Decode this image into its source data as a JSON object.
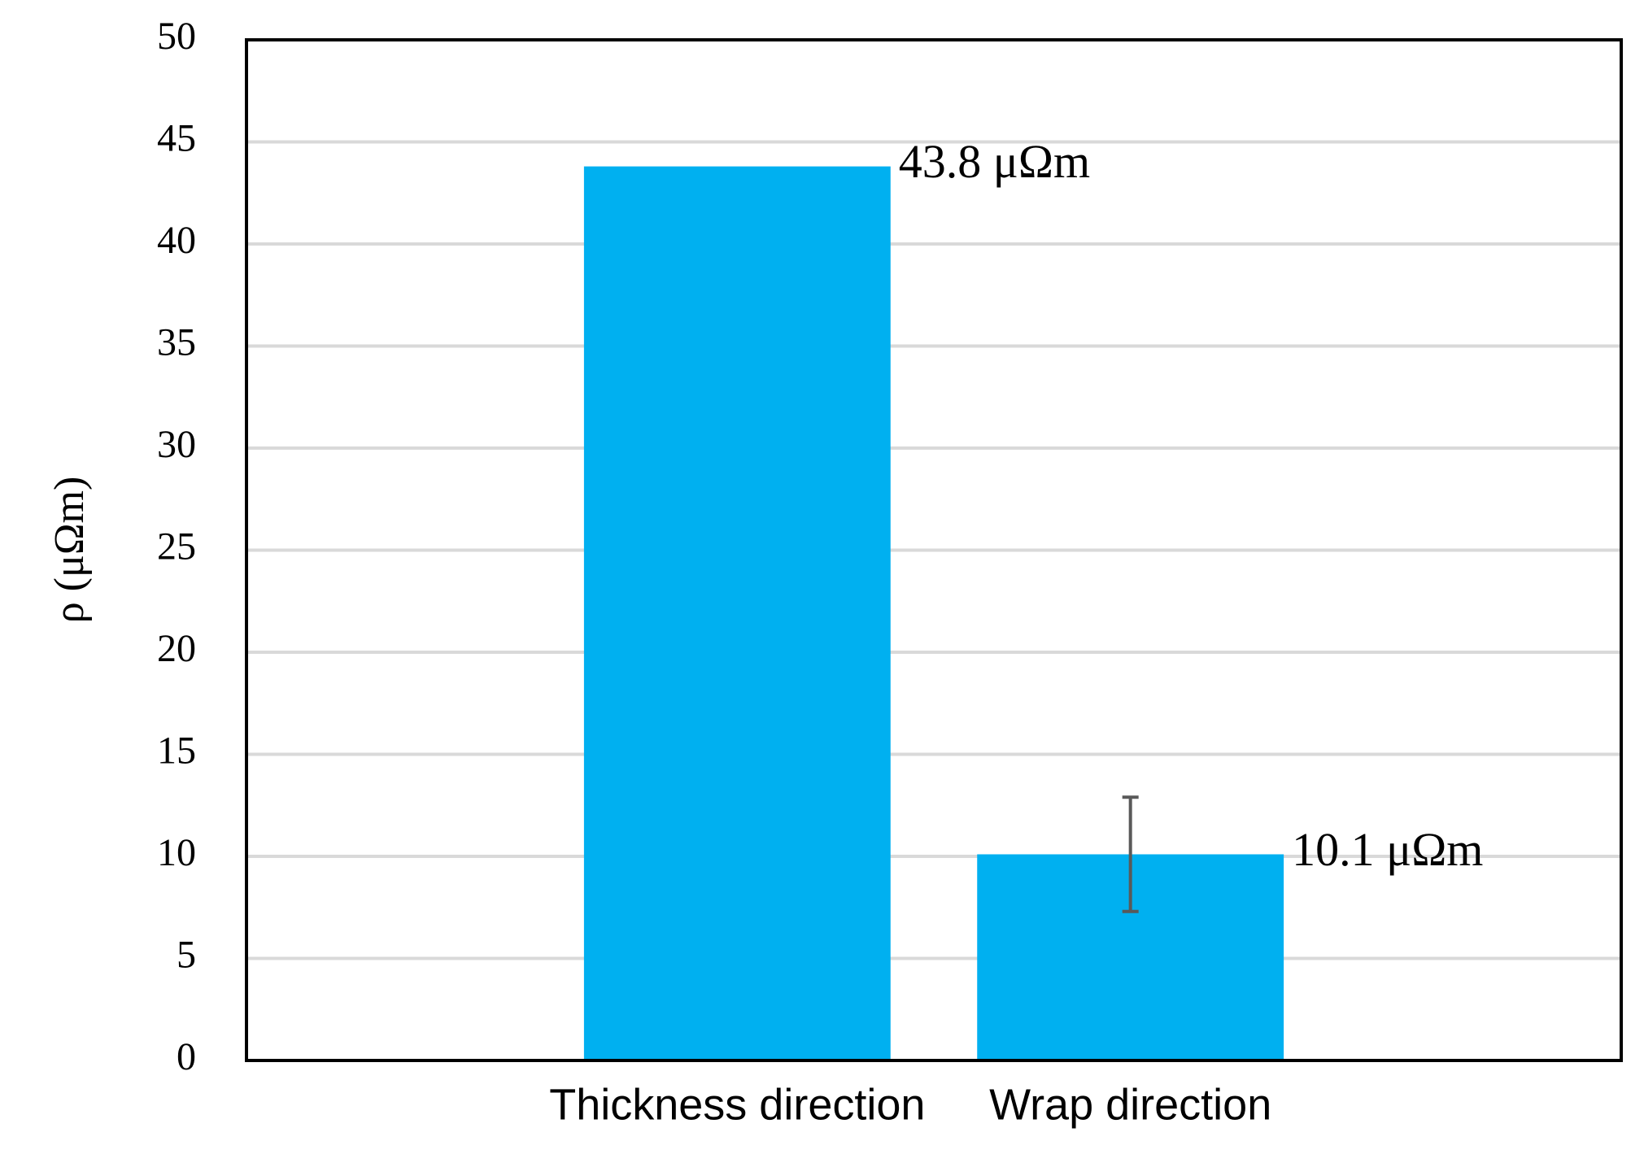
{
  "chart_data": {
    "type": "bar",
    "y_label": "ρ (μΩm)",
    "categories": [
      "Thickness direction",
      "Wrap direction"
    ],
    "values": [
      43.8,
      10.1
    ],
    "value_labels": [
      "43.8 μΩm",
      "10.1 μΩm"
    ],
    "errors": [
      null,
      2.8
    ],
    "color": "#00b0f0",
    "ylim": [
      0,
      50
    ],
    "yticks": [
      0,
      5,
      10,
      15,
      20,
      25,
      30,
      35,
      40,
      45,
      50
    ],
    "grid": true
  }
}
